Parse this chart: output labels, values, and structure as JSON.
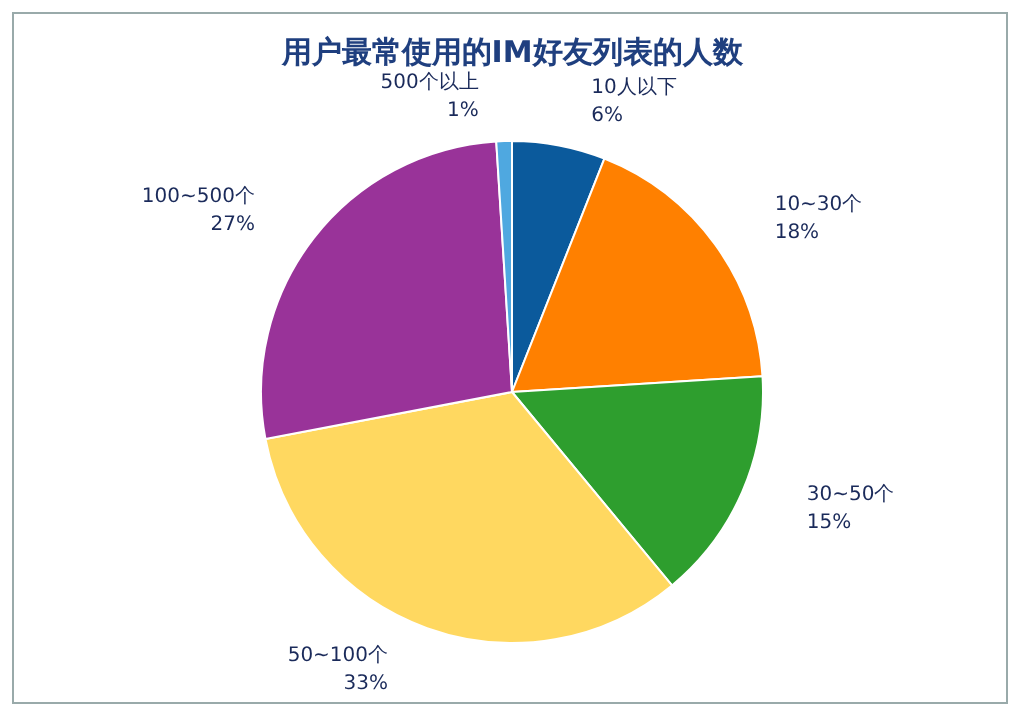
{
  "chart_data": {
    "type": "pie",
    "title": "用户最常使用的IM好友列表的人数",
    "categories": [
      "10人以下",
      "10~30个",
      "30~50个",
      "50~100个",
      "100~500个",
      "500个以上"
    ],
    "values": [
      6,
      18,
      15,
      33,
      27,
      1
    ],
    "value_labels": [
      "6%",
      "18%",
      "15%",
      "33%",
      "27%",
      "1%"
    ],
    "colors": [
      "#0b5a9c",
      "#ff8000",
      "#2e9e2e",
      "#ffd860",
      "#993399",
      "#4fa8e0"
    ],
    "legend": false
  }
}
